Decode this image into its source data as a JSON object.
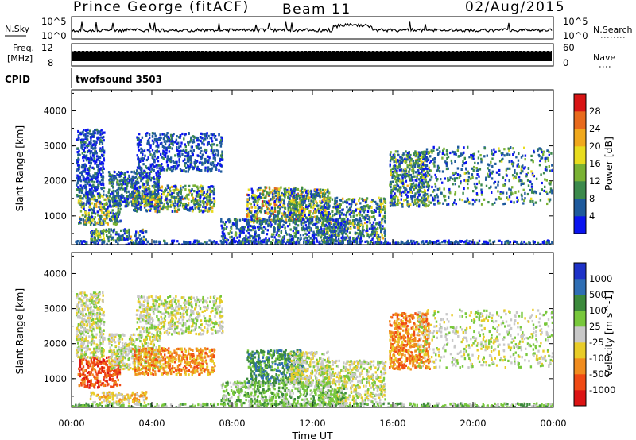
{
  "header": {
    "title_left": "Prince George (fitACF)",
    "title_center": "Beam 11",
    "title_right": "02/Aug/2015"
  },
  "strips": {
    "nsky_label": "N.Sky",
    "nsky_ticks": [
      "10^5",
      "10^0"
    ],
    "nsearch_label": "N.Search",
    "nsearch_ticks": [
      "10^5",
      "10^0"
    ],
    "freq_label_1": "Freq.",
    "freq_label_2": "[MHz]",
    "freq_ticks": [
      "12",
      "8"
    ],
    "nave_label": "Nave",
    "nave_ticks": [
      "60",
      "0"
    ],
    "cpid_label": "CPID",
    "cpid_value": "twofsound 3503"
  },
  "chart_data": [
    {
      "type": "heatmap",
      "name": "power",
      "ylabel": "Slant Range [km]",
      "ylim": [
        180,
        4600
      ],
      "yticks": [
        "1000",
        "2000",
        "3000",
        "4000"
      ],
      "xlim_hours": [
        0,
        24
      ],
      "colorbar": {
        "label": "Power [dB]",
        "ticks": [
          "4",
          "8",
          "12",
          "16",
          "20",
          "24",
          "28"
        ],
        "colors": [
          "#0a14f0",
          "#1e5a9c",
          "#3c8a4c",
          "#7ab234",
          "#e8dc1e",
          "#f0a81c",
          "#e86a1c",
          "#d81414"
        ]
      },
      "echo_regions": [
        {
          "t_start": 0.3,
          "t_end": 2.4,
          "r_min": 780,
          "r_max": 1650,
          "max_level": 6
        },
        {
          "t_start": 0.9,
          "t_end": 3.7,
          "r_min": 330,
          "r_max": 650,
          "max_level": 5
        },
        {
          "t_start": 0.2,
          "t_end": 1.6,
          "r_min": 1600,
          "r_max": 3500,
          "max_level": 2
        },
        {
          "t_start": 1.8,
          "t_end": 4.4,
          "r_min": 1300,
          "r_max": 2300,
          "max_level": 3
        },
        {
          "t_start": 3.0,
          "t_end": 7.1,
          "r_min": 1150,
          "r_max": 1900,
          "max_level": 6
        },
        {
          "t_start": 3.2,
          "t_end": 7.5,
          "r_min": 2300,
          "r_max": 3400,
          "max_level": 2
        },
        {
          "t_start": 8.7,
          "t_end": 11.5,
          "r_min": 850,
          "r_max": 1850,
          "max_level": 7
        },
        {
          "t_start": 10.8,
          "t_end": 12.8,
          "r_min": 850,
          "r_max": 1800,
          "max_level": 6
        },
        {
          "t_start": 12.4,
          "t_end": 15.6,
          "r_min": 320,
          "r_max": 1550,
          "max_level": 5
        },
        {
          "t_start": 15.8,
          "t_end": 17.8,
          "r_min": 1300,
          "r_max": 2900,
          "max_level": 5
        },
        {
          "t_start": 17.2,
          "t_end": 24.0,
          "r_min": 1350,
          "r_max": 3000,
          "max_level": 4
        },
        {
          "t_start": 0.0,
          "t_end": 24.0,
          "r_min": 190,
          "r_max": 330,
          "max_level": 2
        },
        {
          "t_start": 7.4,
          "t_end": 13.6,
          "r_min": 260,
          "r_max": 950,
          "max_level": 3
        }
      ]
    },
    {
      "type": "heatmap",
      "name": "velocity",
      "ylabel": "Slant Range [km]",
      "xlabel": "Time UT",
      "ylim": [
        180,
        4600
      ],
      "yticks": [
        "1000",
        "2000",
        "3000",
        "4000"
      ],
      "xlim_hours": [
        0,
        24
      ],
      "xticks": [
        "00:00",
        "04:00",
        "08:00",
        "12:00",
        "16:00",
        "20:00",
        "00:00"
      ],
      "colorbar": {
        "label": "Velocity [m s^-1]",
        "ticks": [
          "1000",
          "500",
          "100",
          "25",
          "-25",
          "-100",
          "-500",
          "-1000"
        ],
        "colors": [
          "#1e32c8",
          "#2f6eb4",
          "#3c8a3c",
          "#78c83c",
          "#c8c8c8",
          "#e8cc28",
          "#f08c1e",
          "#f04a14",
          "#dc1414"
        ]
      },
      "echo_regions": [
        {
          "t_start": 0.3,
          "t_end": 2.4,
          "r_min": 780,
          "r_max": 1650,
          "max_level": 7
        },
        {
          "t_start": 0.9,
          "t_end": 3.7,
          "r_min": 330,
          "r_max": 650,
          "max_level": 5
        },
        {
          "t_start": 0.2,
          "t_end": 1.6,
          "r_min": 1600,
          "r_max": 3500,
          "max_level": 4
        },
        {
          "t_start": 1.8,
          "t_end": 4.4,
          "r_min": 1300,
          "r_max": 2300,
          "max_level": 4
        },
        {
          "t_start": 3.0,
          "t_end": 7.1,
          "r_min": 1150,
          "r_max": 1900,
          "max_level": 6
        },
        {
          "t_start": 3.2,
          "t_end": 7.5,
          "r_min": 2300,
          "r_max": 3400,
          "max_level": 4
        },
        {
          "t_start": 8.7,
          "t_end": 11.5,
          "r_min": 850,
          "r_max": 1850,
          "max_level": 2
        },
        {
          "t_start": 10.8,
          "t_end": 12.8,
          "r_min": 850,
          "r_max": 1800,
          "max_level": 4
        },
        {
          "t_start": 12.4,
          "t_end": 15.6,
          "r_min": 320,
          "r_max": 1550,
          "max_level": 4
        },
        {
          "t_start": 15.8,
          "t_end": 17.8,
          "r_min": 1300,
          "r_max": 2900,
          "max_level": 6
        },
        {
          "t_start": 17.2,
          "t_end": 24.0,
          "r_min": 1350,
          "r_max": 3000,
          "max_level": 4
        },
        {
          "t_start": 0.0,
          "t_end": 24.0,
          "r_min": 190,
          "r_max": 330,
          "max_level": 3
        },
        {
          "t_start": 7.4,
          "t_end": 13.6,
          "r_min": 260,
          "r_max": 950,
          "max_level": 3
        }
      ]
    }
  ]
}
